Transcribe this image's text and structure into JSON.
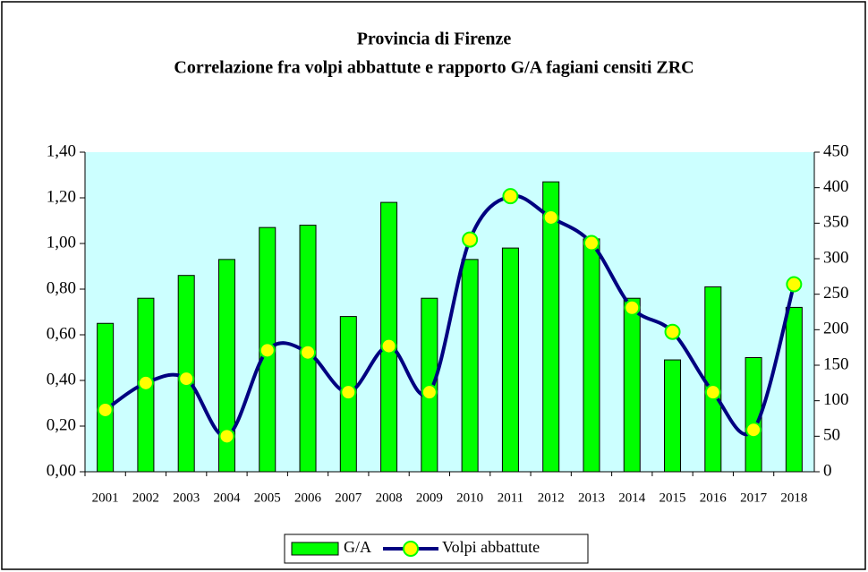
{
  "chart_data": {
    "type": "bar-line",
    "title": "Provincia di Firenze",
    "subtitle": "Correlazione fra volpi abbattute e rapporto G/A fagiani censiti ZRC",
    "categories": [
      "2001",
      "2002",
      "2003",
      "2004",
      "2005",
      "2006",
      "2007",
      "2008",
      "2009",
      "2010",
      "2011",
      "2012",
      "2013",
      "2014",
      "2015",
      "2016",
      "2017",
      "2018"
    ],
    "series": [
      {
        "name": "G/A",
        "type": "bar",
        "color": "#00ff00",
        "axis": "y",
        "values": [
          0.65,
          0.76,
          0.86,
          0.93,
          1.07,
          1.08,
          0.68,
          1.18,
          0.76,
          0.93,
          0.98,
          1.27,
          1.02,
          0.76,
          0.49,
          0.81,
          0.5,
          0.72
        ]
      },
      {
        "name": "Volpi abbattute",
        "type": "line",
        "color": "#000080",
        "marker_color": "#ffff00",
        "axis": "y2",
        "values": [
          87,
          125,
          131,
          50,
          171,
          168,
          112,
          177,
          112,
          327,
          388,
          358,
          322,
          231,
          197,
          112,
          59,
          264
        ]
      }
    ],
    "ylim": [
      0,
      1.4
    ],
    "yticks": [
      {
        "value": 0,
        "label": "0,00"
      },
      {
        "value": 0.2,
        "label": "0,20"
      },
      {
        "value": 0.4,
        "label": "0,40"
      },
      {
        "value": 0.6,
        "label": "0,60"
      },
      {
        "value": 0.8,
        "label": "0,80"
      },
      {
        "value": 1.0,
        "label": "1,00"
      },
      {
        "value": 1.2,
        "label": "1,20"
      },
      {
        "value": 1.4,
        "label": "1,40"
      }
    ],
    "y2lim": [
      0,
      450
    ],
    "y2ticks": [
      0,
      50,
      100,
      150,
      200,
      250,
      300,
      350,
      400,
      450
    ],
    "plot_background": "#ccffff",
    "legend": "bottom"
  }
}
